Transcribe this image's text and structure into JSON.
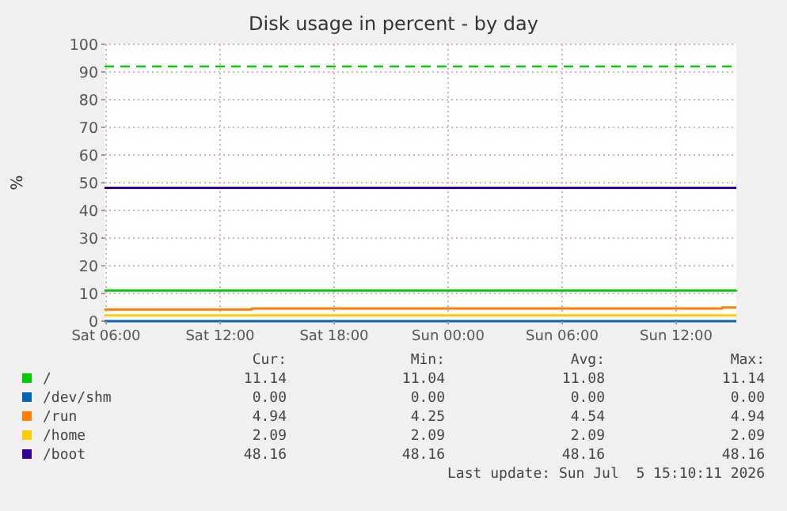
{
  "chart_data": {
    "type": "step",
    "title": "Disk usage in percent - by day",
    "ylabel": "%",
    "xlim": [
      "2026-07-04T05:55",
      "2026-07-05T15:10"
    ],
    "xticks": [
      {
        "value": "2026-07-04T06:00",
        "label": "Sat 06:00"
      },
      {
        "value": "2026-07-04T12:00",
        "label": "Sat 12:00"
      },
      {
        "value": "2026-07-04T18:00",
        "label": "Sat 18:00"
      },
      {
        "value": "2026-07-05T00:00",
        "label": "Sun 00:00"
      },
      {
        "value": "2026-07-05T06:00",
        "label": "Sun 06:00"
      },
      {
        "value": "2026-07-05T12:00",
        "label": "Sun 12:00"
      }
    ],
    "ylim": [
      0,
      100
    ],
    "yticks": [
      0,
      10,
      20,
      30,
      40,
      50,
      60,
      70,
      80,
      90,
      100
    ],
    "grid": true,
    "legend": "bottom",
    "series": [
      {
        "name": "/",
        "color": "#00cc00",
        "x": [
          "2026-07-04T05:55",
          "2026-07-04T14:00",
          "2026-07-05T04:00",
          "2026-07-05T15:10"
        ],
        "values": [
          11.04,
          11.06,
          11.1,
          11.14
        ]
      },
      {
        "name": "/dev/shm",
        "color": "#0066b3",
        "x": [
          "2026-07-04T05:55",
          "2026-07-05T15:10"
        ],
        "values": [
          0,
          0
        ]
      },
      {
        "name": "/run",
        "color": "#ff8000",
        "x": [
          "2026-07-04T05:55",
          "2026-07-04T13:40",
          "2026-07-05T14:25",
          "2026-07-05T15:10"
        ],
        "values": [
          4.25,
          4.6,
          4.94,
          4.94
        ]
      },
      {
        "name": "/home",
        "color": "#ffcc00",
        "x": [
          "2026-07-04T05:55",
          "2026-07-05T15:10"
        ],
        "values": [
          2.09,
          2.09
        ]
      },
      {
        "name": "/boot",
        "color": "#330099",
        "x": [
          "2026-07-04T05:55",
          "2026-07-05T15:10"
        ],
        "values": [
          48.16,
          48.16
        ]
      }
    ],
    "ref_lines": [
      {
        "axis": "y",
        "value": 92,
        "color": "#00cc00",
        "line_style": "dashed"
      }
    ],
    "annotations": [
      "Cur:",
      "Min:",
      "Avg:",
      "Max:",
      "11.14",
      "11.04",
      "11.08",
      "11.14",
      "0.00",
      "0.00",
      "0.00",
      "0.00",
      "4.94",
      "4.25",
      "4.54",
      "4.94",
      "2.09",
      "2.09",
      "2.09",
      "2.09",
      "48.16",
      "48.16",
      "48.16",
      "48.16",
      "Last update: Sun Jul  5 15:10:11 2026"
    ]
  }
}
